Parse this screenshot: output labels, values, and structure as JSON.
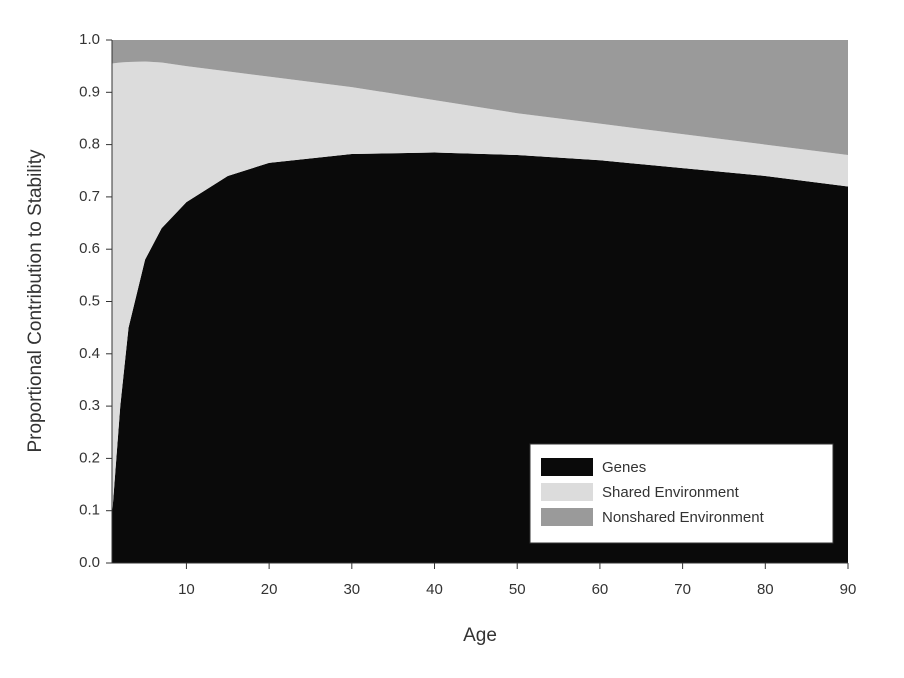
{
  "chart_data": {
    "type": "stacked_area",
    "xlabel": "Age",
    "ylabel": "Proportional Contribution to Stability",
    "x": [
      1,
      2,
      3,
      5,
      7,
      10,
      15,
      20,
      30,
      40,
      50,
      60,
      70,
      80,
      90
    ],
    "series": [
      {
        "name": "Genes",
        "color": "#0a0a0a",
        "values": [
          0.09,
          0.3,
          0.45,
          0.58,
          0.64,
          0.69,
          0.74,
          0.765,
          0.782,
          0.785,
          0.78,
          0.77,
          0.755,
          0.74,
          0.72
        ]
      },
      {
        "name": "Shared Environment",
        "color": "#dcdcdc",
        "values": [
          0.865,
          0.657,
          0.508,
          0.379,
          0.317,
          0.26,
          0.2,
          0.165,
          0.128,
          0.1,
          0.08,
          0.07,
          0.065,
          0.06,
          0.06
        ]
      },
      {
        "name": "Nonshared Environment",
        "color": "#9a9a9a",
        "values": [
          0.045,
          0.043,
          0.042,
          0.041,
          0.043,
          0.05,
          0.06,
          0.07,
          0.09,
          0.115,
          0.14,
          0.16,
          0.18,
          0.2,
          0.22
        ]
      }
    ],
    "xlim": [
      1,
      90
    ],
    "ylim": [
      0,
      1
    ],
    "xticks": [
      10,
      20,
      30,
      40,
      50,
      60,
      70,
      80,
      90
    ],
    "yticks": [
      {
        "value": 0,
        "label": "0.0"
      },
      0.1,
      0.2,
      0.3,
      0.4,
      0.5,
      0.6,
      0.7,
      0.8,
      0.9,
      {
        "value": 1,
        "label": "1.0"
      }
    ],
    "legend_position": "lower right"
  }
}
